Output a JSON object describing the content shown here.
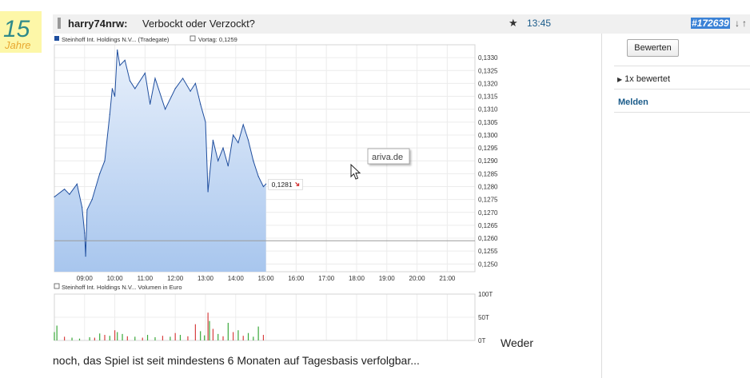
{
  "avatar": {
    "badge_number": "15",
    "badge_word": "Jahre"
  },
  "post": {
    "user": "harry74nrw:",
    "title": "Verbockt oder Verzockt?",
    "time": "13:45",
    "post_id": "#172639",
    "icons": [
      "star-icon",
      "arrow-down-icon",
      "arrow-up-icon"
    ]
  },
  "sidebar": {
    "rate_button": "Bewerten",
    "rated_count": "1x bewertet",
    "report_link": "Melden"
  },
  "chart_data": [
    {
      "type": "area",
      "legend": [
        "Steinhoff Int. Holdings N.V... (Tradegate)",
        "Vortag: 0,1259"
      ],
      "x": [
        "09:00",
        "10:00",
        "11:00",
        "12:00",
        "13:00",
        "14:00",
        "15:00",
        "16:00",
        "17:00",
        "18:00",
        "19:00",
        "20:00",
        "21:00"
      ],
      "y_ticks": [
        "0,1330",
        "0,1325",
        "0,1320",
        "0,1315",
        "0,1310",
        "0,1305",
        "0,1300",
        "0,1295",
        "0,1290",
        "0,1285",
        "0,1280",
        "0,1275",
        "0,1270",
        "0,1265",
        "0,1260",
        "0,1255",
        "0,1250"
      ],
      "ylim": [
        0.1247,
        0.1335
      ],
      "previous_close": 0.1259,
      "last_value_label": "0,1281",
      "watermark": "ariva.de",
      "series": [
        {
          "values": [
            [
              "08:00",
              0.1276
            ],
            [
              "08:20",
              0.1279
            ],
            [
              "08:30",
              0.1277
            ],
            [
              "08:45",
              0.1281
            ],
            [
              "08:55",
              0.1272
            ],
            [
              "09:00",
              0.1262
            ],
            [
              "09:02",
              0.1253
            ],
            [
              "09:05",
              0.1271
            ],
            [
              "09:15",
              0.1275
            ],
            [
              "09:30",
              0.1285
            ],
            [
              "09:40",
              0.129
            ],
            [
              "09:50",
              0.1308
            ],
            [
              "09:55",
              0.1318
            ],
            [
              "10:00",
              0.1315
            ],
            [
              "10:05",
              0.1333
            ],
            [
              "10:10",
              0.1327
            ],
            [
              "10:20",
              0.1329
            ],
            [
              "10:30",
              0.1321
            ],
            [
              "10:40",
              0.1318
            ],
            [
              "11:00",
              0.1324
            ],
            [
              "11:10",
              0.1312
            ],
            [
              "11:20",
              0.1322
            ],
            [
              "11:40",
              0.131
            ],
            [
              "12:00",
              0.1318
            ],
            [
              "12:15",
              0.1322
            ],
            [
              "12:30",
              0.1317
            ],
            [
              "12:40",
              0.132
            ],
            [
              "12:50",
              0.1312
            ],
            [
              "13:00",
              0.1305
            ],
            [
              "13:05",
              0.1278
            ],
            [
              "13:15",
              0.1298
            ],
            [
              "13:25",
              0.129
            ],
            [
              "13:35",
              0.1295
            ],
            [
              "13:45",
              0.1288
            ],
            [
              "13:55",
              0.13
            ],
            [
              "14:05",
              0.1297
            ],
            [
              "14:15",
              0.1304
            ],
            [
              "14:25",
              0.1298
            ],
            [
              "14:35",
              0.129
            ],
            [
              "14:45",
              0.1284
            ],
            [
              "14:55",
              0.128
            ],
            [
              "15:00",
              0.1281
            ]
          ]
        }
      ]
    },
    {
      "type": "bar",
      "legend": [
        "Steinhoff Int. Holdings N.V... Volumen in Euro"
      ],
      "y_ticks": [
        "100T",
        "50T",
        "0T"
      ],
      "ylim": [
        0,
        100
      ],
      "colors": {
        "up": "#3aa83a",
        "down": "#d84040"
      },
      "series": [
        {
          "values": [
            [
              "08:00",
              18,
              "g"
            ],
            [
              "08:05",
              32,
              "g"
            ],
            [
              "08:20",
              8,
              "r"
            ],
            [
              "08:35",
              6,
              "g"
            ],
            [
              "08:50",
              4,
              "g"
            ],
            [
              "09:10",
              7,
              "g"
            ],
            [
              "09:20",
              6,
              "r"
            ],
            [
              "09:30",
              15,
              "g"
            ],
            [
              "09:40",
              12,
              "r"
            ],
            [
              "09:50",
              10,
              "g"
            ],
            [
              "10:00",
              22,
              "r"
            ],
            [
              "10:05",
              18,
              "g"
            ],
            [
              "10:15",
              14,
              "g"
            ],
            [
              "10:25",
              9,
              "r"
            ],
            [
              "10:40",
              8,
              "g"
            ],
            [
              "10:55",
              6,
              "r"
            ],
            [
              "11:05",
              12,
              "g"
            ],
            [
              "11:20",
              7,
              "g"
            ],
            [
              "11:35",
              10,
              "r"
            ],
            [
              "11:50",
              8,
              "g"
            ],
            [
              "12:00",
              16,
              "r"
            ],
            [
              "12:10",
              12,
              "g"
            ],
            [
              "12:25",
              9,
              "r"
            ],
            [
              "12:40",
              35,
              "r"
            ],
            [
              "12:50",
              20,
              "g"
            ],
            [
              "12:58",
              11,
              "g"
            ],
            [
              "13:05",
              60,
              "r"
            ],
            [
              "13:08",
              42,
              "g"
            ],
            [
              "13:15",
              25,
              "r"
            ],
            [
              "13:25",
              14,
              "g"
            ],
            [
              "13:35",
              9,
              "r"
            ],
            [
              "13:45",
              38,
              "g"
            ],
            [
              "13:55",
              18,
              "r"
            ],
            [
              "14:05",
              22,
              "g"
            ],
            [
              "14:15",
              10,
              "r"
            ],
            [
              "14:25",
              16,
              "g"
            ],
            [
              "14:35",
              8,
              "g"
            ],
            [
              "14:45",
              30,
              "g"
            ],
            [
              "14:55",
              12,
              "r"
            ]
          ]
        }
      ]
    }
  ],
  "post_text": {
    "word_right": "Weder",
    "line": "noch, das Spiel ist seit mindestens 6 Monaten auf Tagesbasis verfolgbar..."
  }
}
